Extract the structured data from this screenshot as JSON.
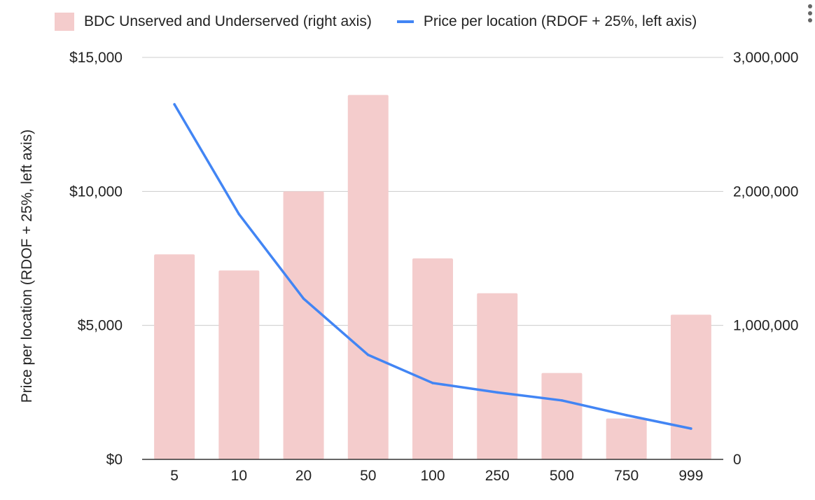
{
  "chart_data": {
    "type": "bar",
    "categories": [
      "5",
      "10",
      "20",
      "50",
      "100",
      "250",
      "500",
      "750",
      "999"
    ],
    "series": [
      {
        "name": "BDC Unserved and Underserved (right axis)",
        "type": "bar",
        "axis": "right",
        "color": "#f4cccc",
        "values": [
          1530000,
          1410000,
          2000000,
          2720000,
          1500000,
          1240000,
          645000,
          305000,
          1080000
        ]
      },
      {
        "name": "Price per location (RDOF + 25%, left axis)",
        "type": "line",
        "axis": "left",
        "color": "#4285f4",
        "values": [
          13250,
          9150,
          6000,
          3900,
          2850,
          2500,
          2200,
          1650,
          1150
        ]
      }
    ],
    "ylabel": "Price per location (RDOF + 25%, left axis)",
    "ylim_left": [
      0,
      15000
    ],
    "ylim_right": [
      0,
      3000000
    ],
    "left_ticks": [
      "$0",
      "$5,000",
      "$10,000",
      "$15,000"
    ],
    "right_ticks": [
      "0",
      "1,000,000",
      "2,000,000",
      "3,000,000"
    ],
    "grid": true,
    "legend_position": "top"
  },
  "legend": {
    "bar_label": "BDC Unserved and Underserved (right axis)",
    "line_label": "Price per location (RDOF + 25%, left axis)"
  },
  "colors": {
    "bar": "#f4cccc",
    "line": "#4285f4",
    "grid": "#cccccc",
    "axis": "#333333"
  },
  "icons": {
    "menu": "more-vert-icon"
  }
}
